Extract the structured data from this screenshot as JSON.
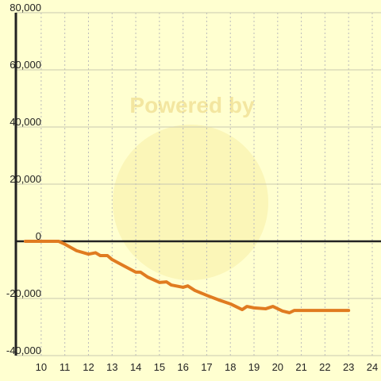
{
  "chart_data": {
    "type": "line",
    "watermark": "Powered by",
    "x": [
      9.33,
      10.74,
      11,
      11.5,
      12,
      12.3,
      12.5,
      12.8,
      13,
      13.5,
      14,
      14.2,
      14.5,
      15,
      15.3,
      15.5,
      16,
      16.2,
      16.5,
      17,
      17.5,
      18,
      18.5,
      18.7,
      19,
      19.5,
      19.8,
      20.2,
      20.5,
      20.7,
      21,
      23
    ],
    "series": [
      {
        "color": "#e07b20",
        "values": [
          0,
          0,
          -1000,
          -3300,
          -4500,
          -4000,
          -5000,
          -5000,
          -6400,
          -8600,
          -10800,
          -10800,
          -12500,
          -14400,
          -14200,
          -15300,
          -16100,
          -15600,
          -17200,
          -18900,
          -20500,
          -21900,
          -23900,
          -22800,
          -23300,
          -23600,
          -22800,
          -24400,
          -25000,
          -24200,
          -24200,
          -24200
        ]
      }
    ],
    "xlim": [
      8.93,
      24.37
    ],
    "ylim": [
      -40000,
      80000
    ],
    "xticks": [
      10,
      11,
      12,
      13,
      14,
      15,
      16,
      17,
      18,
      19,
      20,
      21,
      22,
      23,
      24
    ],
    "yticks": [
      {
        "value": -40000,
        "label": "-40,000"
      },
      {
        "value": -20000,
        "label": "-20,000"
      },
      0,
      {
        "value": 20000,
        "label": "20,000"
      },
      {
        "value": 40000,
        "label": "40,000"
      },
      {
        "value": 60000,
        "label": "60,000"
      },
      {
        "value": 80000,
        "label": "80,000"
      }
    ],
    "grid": true
  }
}
